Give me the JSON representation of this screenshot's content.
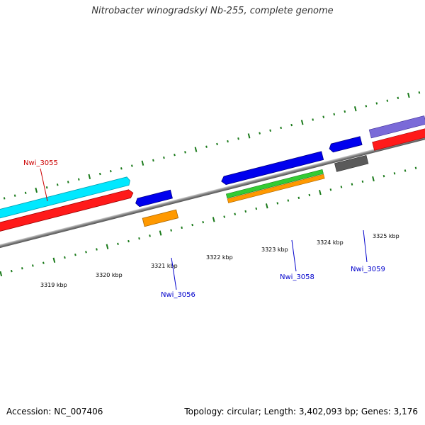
{
  "title": "Nitrobacter winogradskyi Nb-255, complete genome",
  "footer": {
    "accession": "Accession: NC_007406",
    "stats": "Topology: circular; Length: 3,402,093 bp; Genes: 3,176"
  },
  "tick_labels": [
    "3319 kbp",
    "3320 kbp",
    "3321 kbp",
    "3322 kbp",
    "3323 kbp",
    "3324 kbp",
    "3325 kbp"
  ],
  "gene_labels": {
    "g3055": "Nwi_3055",
    "g3056": "Nwi_3056",
    "g3058": "Nwi_3058",
    "g3059": "Nwi_3059"
  },
  "colors": {
    "backbone": "#808080",
    "tick": "#1a7a1a",
    "label_red": "#cc0000",
    "label_blue": "#0000cc",
    "cyan": "#00ffff",
    "red": "#ff0000",
    "blue": "#0000ff",
    "orange": "#ff9900",
    "green": "#33cc33",
    "gray": "#606060",
    "purple": "#7766cc"
  }
}
